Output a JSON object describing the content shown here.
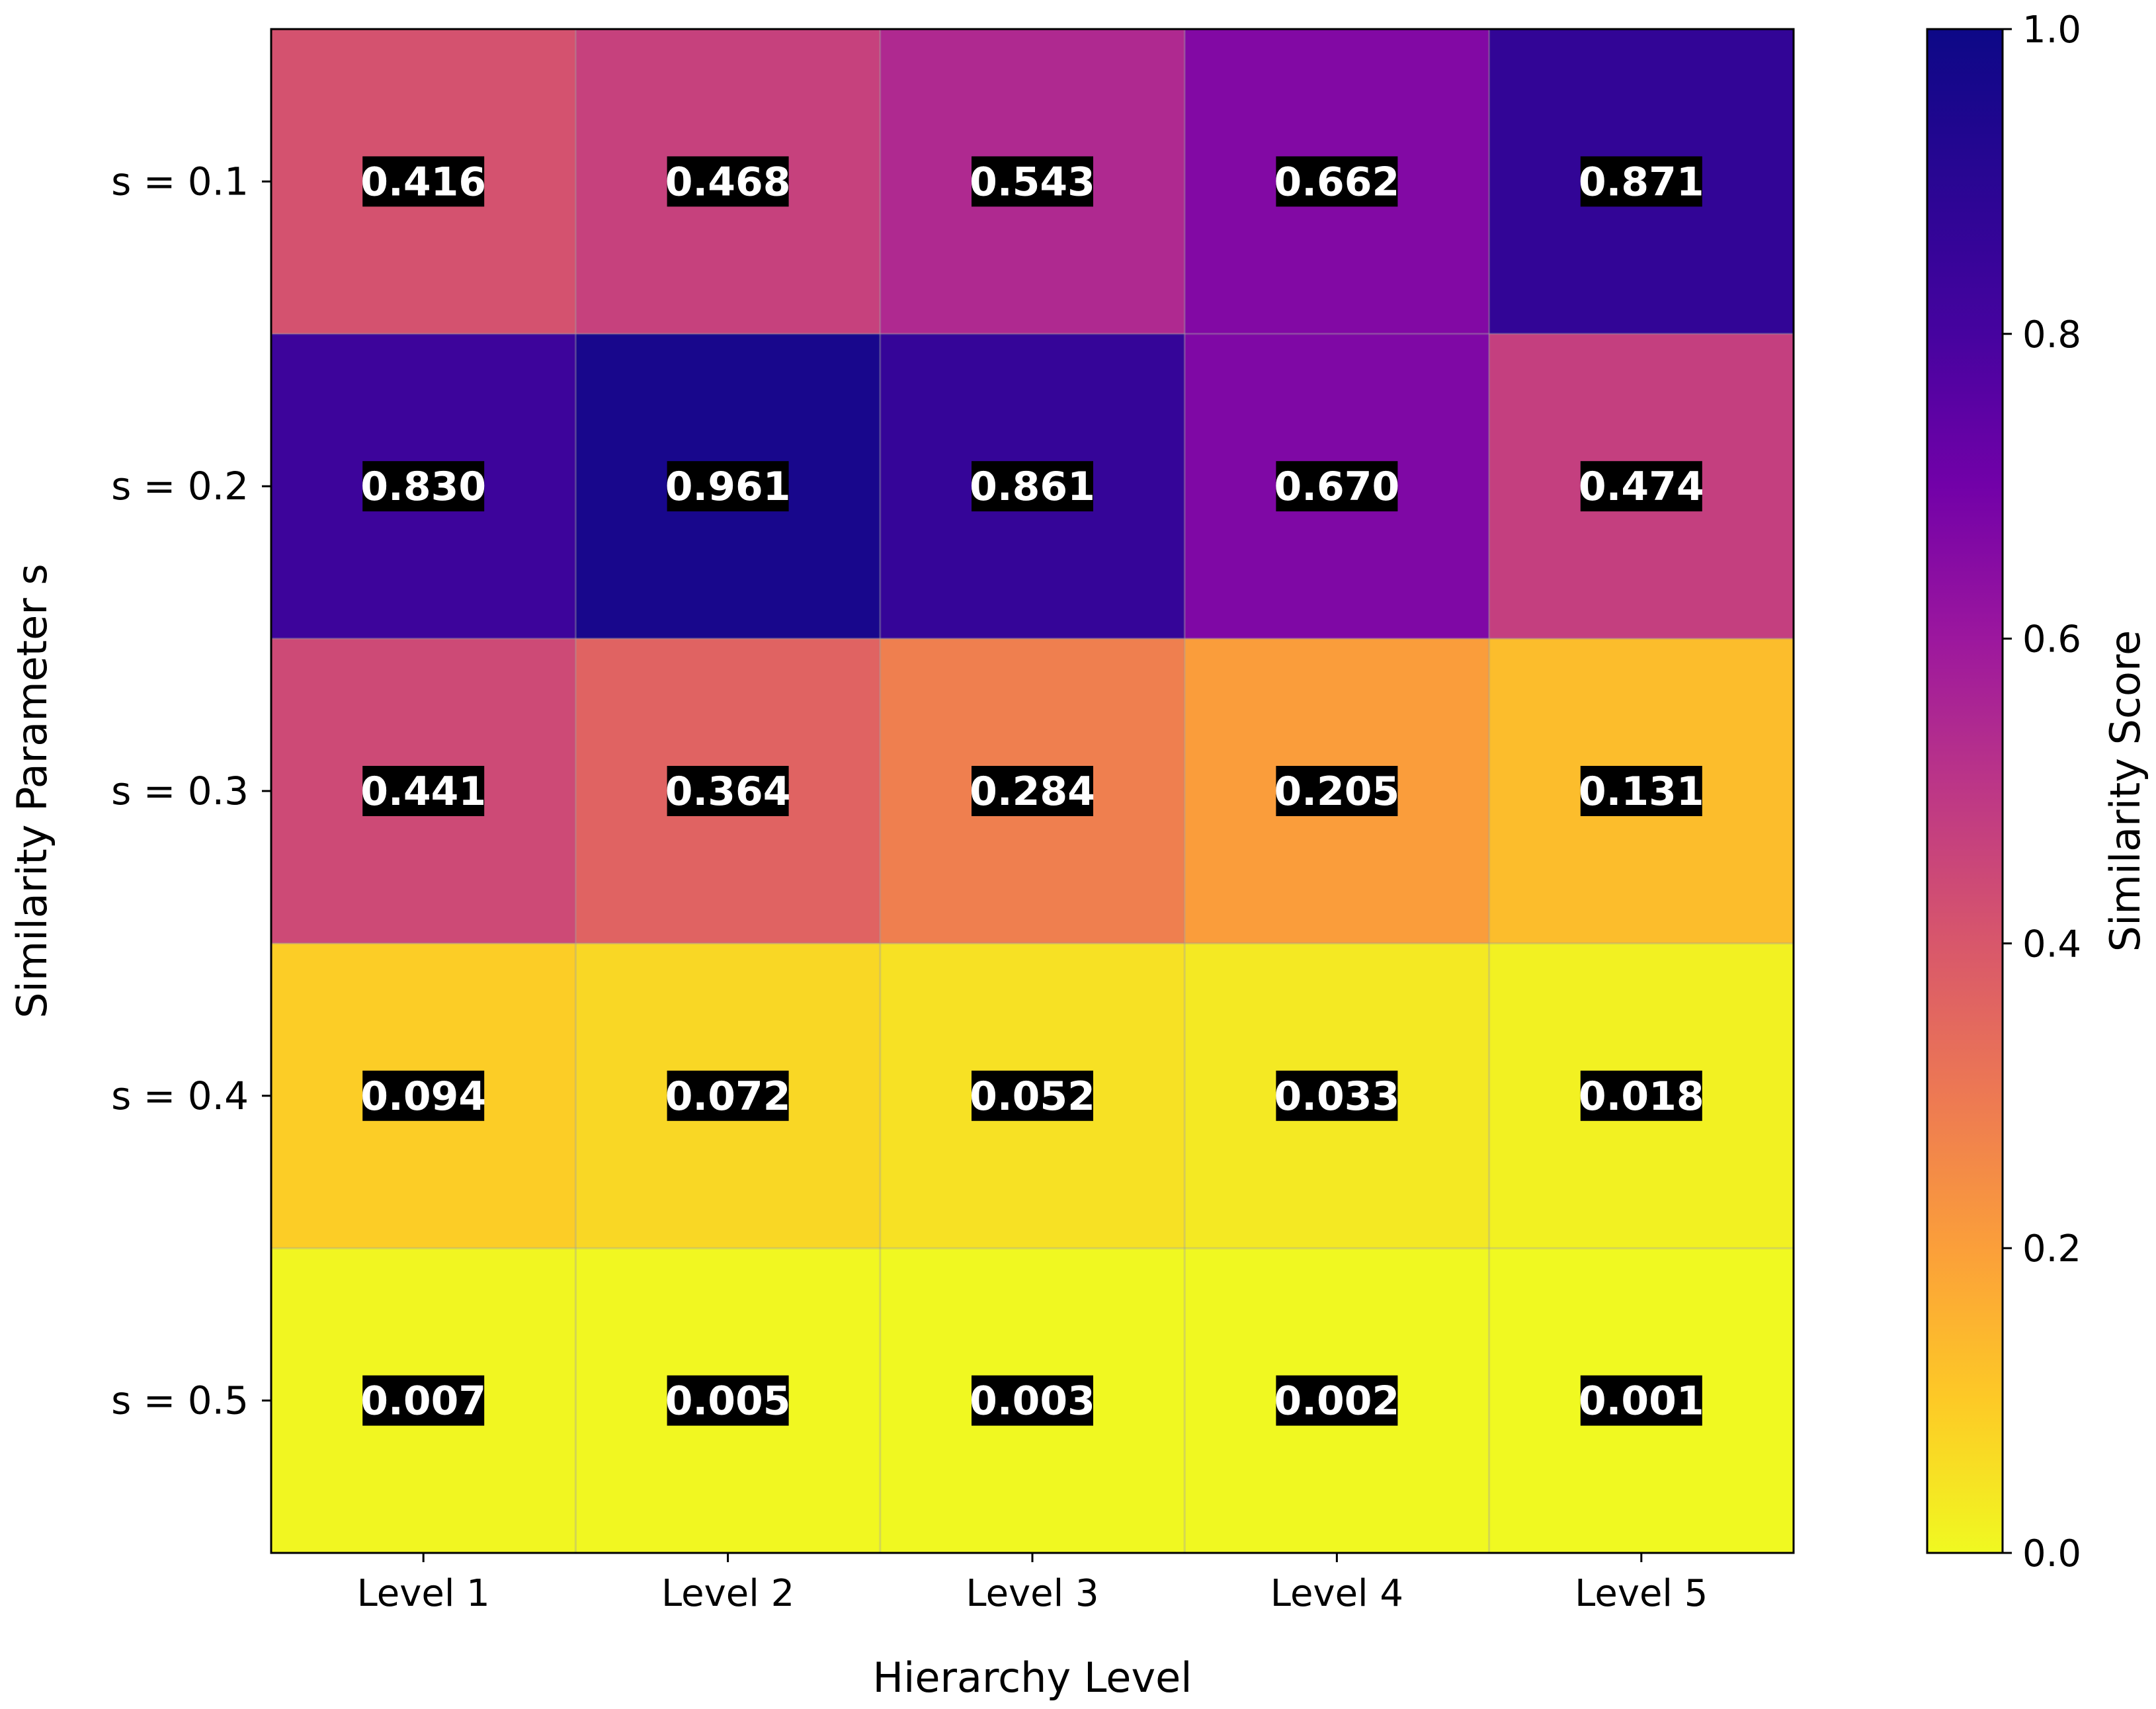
{
  "chart_data": {
    "type": "heatmap",
    "title": "",
    "xlabel": "Hierarchy Level",
    "ylabel": "Similarity Parameter s",
    "x_categories": [
      "Level 1",
      "Level 2",
      "Level 3",
      "Level 4",
      "Level 5"
    ],
    "y_categories": [
      "s = 0.1",
      "s = 0.2",
      "s = 0.3",
      "s = 0.4",
      "s = 0.5"
    ],
    "values": [
      [
        0.416,
        0.468,
        0.543,
        0.662,
        0.871
      ],
      [
        0.83,
        0.961,
        0.861,
        0.67,
        0.474
      ],
      [
        0.441,
        0.364,
        0.284,
        0.205,
        0.131
      ],
      [
        0.094,
        0.072,
        0.052,
        0.033,
        0.018
      ],
      [
        0.007,
        0.005,
        0.003,
        0.002,
        0.001
      ]
    ],
    "value_labels": [
      [
        "0.416",
        "0.468",
        "0.543",
        "0.662",
        "0.871"
      ],
      [
        "0.830",
        "0.961",
        "0.861",
        "0.670",
        "0.474"
      ],
      [
        "0.441",
        "0.364",
        "0.284",
        "0.205",
        "0.131"
      ],
      [
        "0.094",
        "0.072",
        "0.052",
        "0.033",
        "0.018"
      ],
      [
        "0.007",
        "0.005",
        "0.003",
        "0.002",
        "0.001"
      ]
    ],
    "colormap": "plasma_r",
    "vmin": 0.0,
    "vmax": 1.0,
    "colorbar": {
      "label": "Similarity Score",
      "ticks": [
        0.0,
        0.2,
        0.4,
        0.6,
        0.8,
        1.0
      ],
      "tick_labels": [
        "0.0",
        "0.2",
        "0.4",
        "0.6",
        "0.8",
        "1.0"
      ]
    },
    "grid": true
  }
}
